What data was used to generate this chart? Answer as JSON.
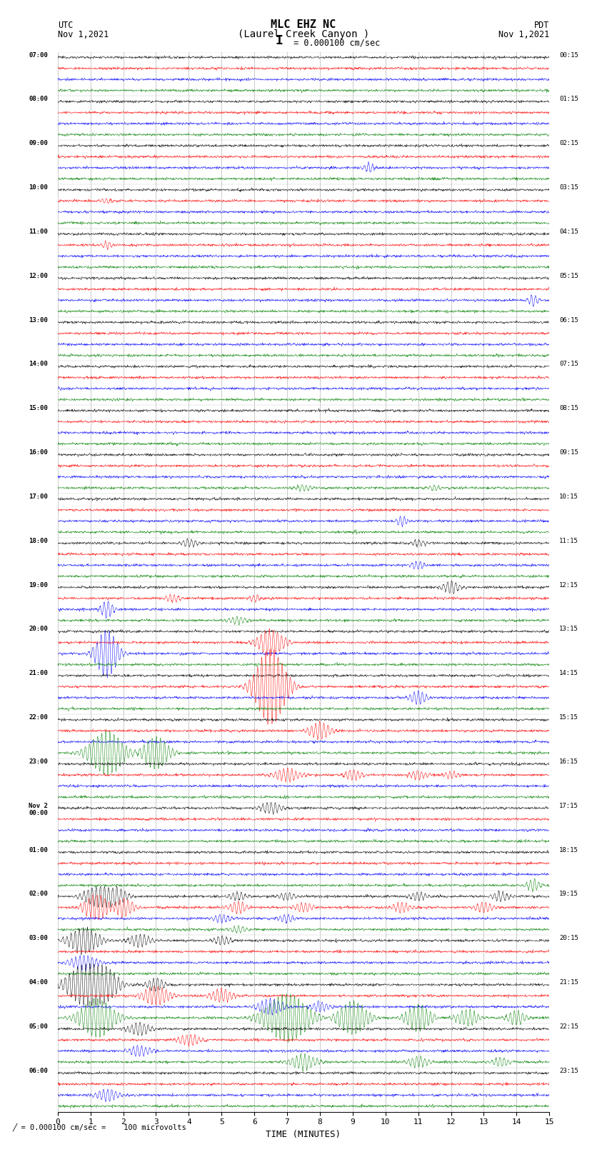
{
  "title_line1": "MLC EHZ NC",
  "title_line2": "(Laurel Creek Canyon )",
  "scale_label": " = 0.000100 cm/sec",
  "utc_label": "UTC\nNov 1,2021",
  "pdt_label": "PDT\nNov 1,2021",
  "xlabel": "TIME (MINUTES)",
  "bottom_note": "= 0.000100 cm/sec =    100 microvolts",
  "left_times_utc": [
    "07:00",
    "08:00",
    "09:00",
    "10:00",
    "11:00",
    "12:00",
    "13:00",
    "14:00",
    "15:00",
    "16:00",
    "17:00",
    "18:00",
    "19:00",
    "20:00",
    "21:00",
    "22:00",
    "23:00",
    "Nov 2\n00:00",
    "01:00",
    "02:00",
    "03:00",
    "04:00",
    "05:00",
    "06:00"
  ],
  "right_times_pdt": [
    "00:15",
    "01:15",
    "02:15",
    "03:15",
    "04:15",
    "05:15",
    "06:15",
    "07:15",
    "08:15",
    "09:15",
    "10:15",
    "11:15",
    "12:15",
    "13:15",
    "14:15",
    "15:15",
    "16:15",
    "17:15",
    "18:15",
    "19:15",
    "20:15",
    "21:15",
    "22:15",
    "23:15"
  ],
  "n_traces": 24,
  "n_rows_per_trace": 4,
  "colors": [
    "black",
    "red",
    "blue",
    "green"
  ],
  "background_color": "white",
  "grid_color": "#999999",
  "xmin": 0,
  "xmax": 15,
  "xticks": [
    0,
    1,
    2,
    3,
    4,
    5,
    6,
    7,
    8,
    9,
    10,
    11,
    12,
    13,
    14,
    15
  ]
}
